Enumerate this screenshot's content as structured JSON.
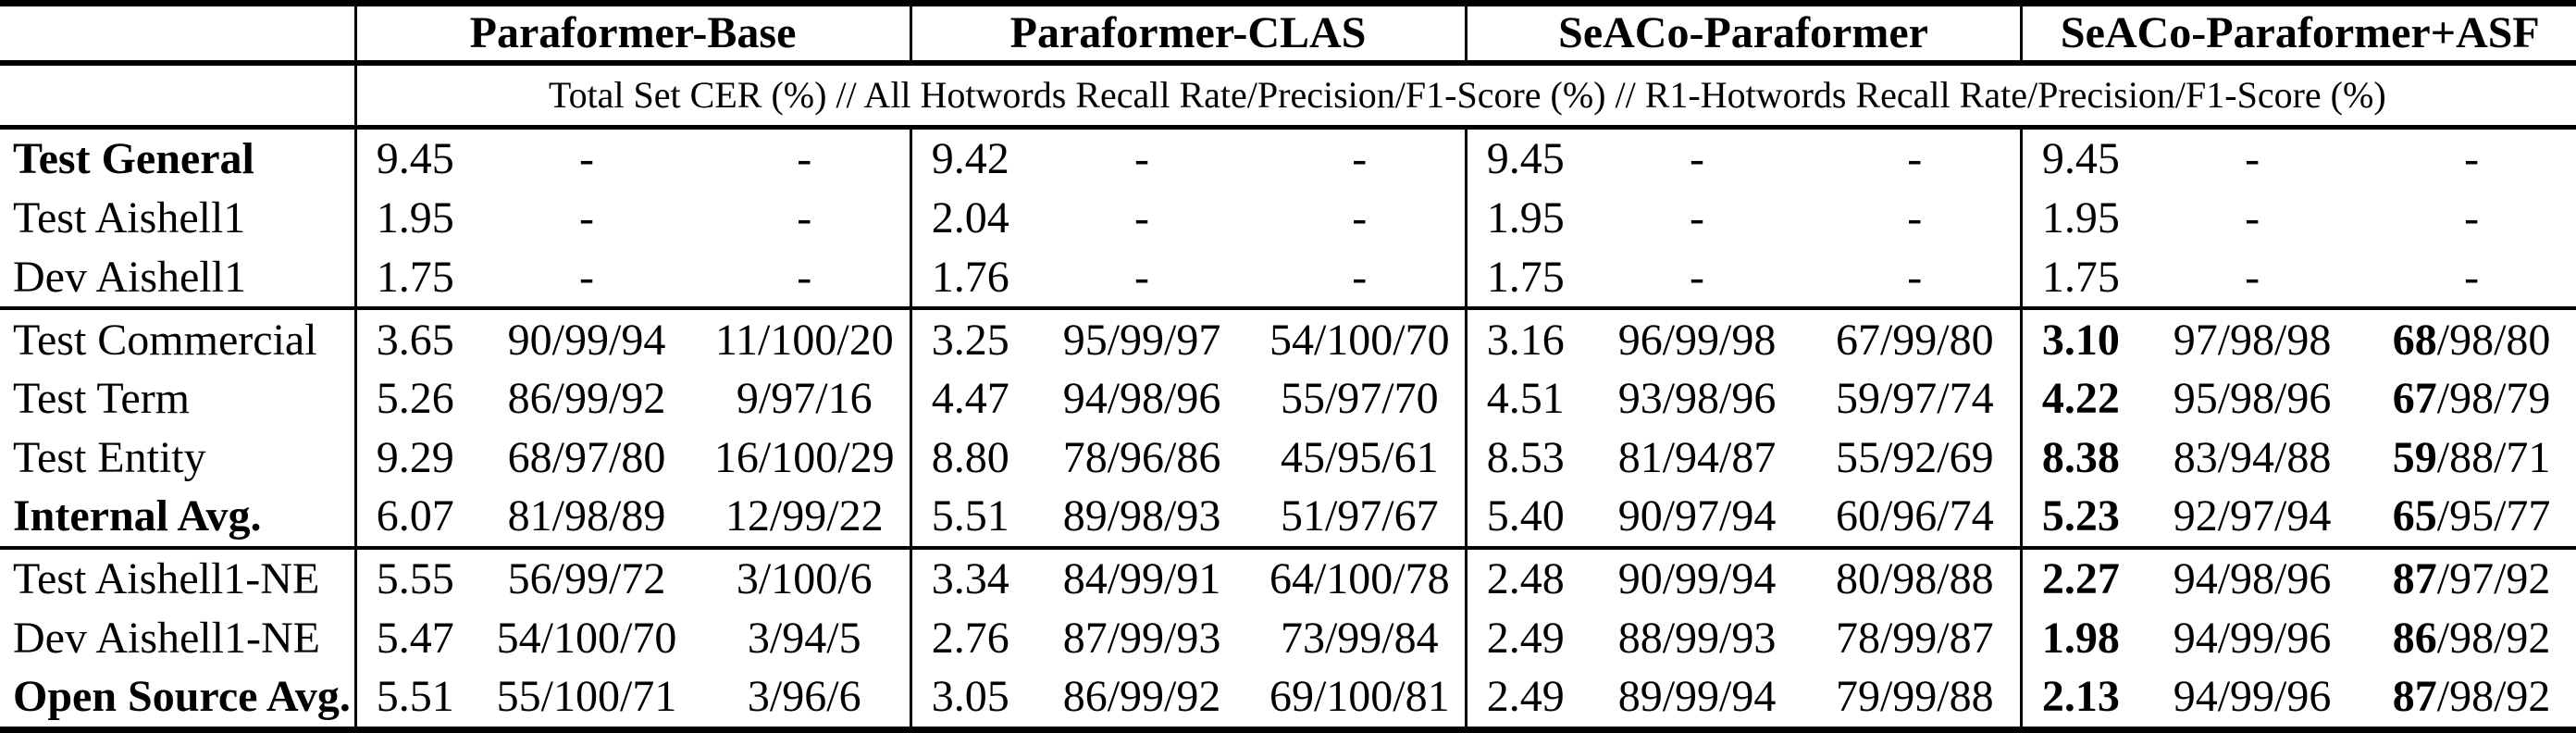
{
  "colors": {
    "text": "#000000",
    "background": "#ffffff",
    "border": "#000000"
  },
  "table": {
    "col_groups": [
      {
        "label": "Paraformer-Base"
      },
      {
        "label": "Paraformer-CLAS"
      },
      {
        "label": "SeACo-Paraformer"
      },
      {
        "label": "SeACo-Paraformer+ASF"
      }
    ],
    "subtitle": "Total Set CER (%) // All Hotwords Recall Rate/Precision/F1-Score (%) // R1-Hotwords Recall Rate/Precision/F1-Score (%)",
    "sub_columns": [
      "Total Set CER",
      "All Hotwords R/P/F1",
      "R1-Hotwords R/P/F1"
    ],
    "rows": [
      {
        "label": "**Test General**",
        "cells": [
          [
            "9.45",
            "-",
            "-"
          ],
          [
            "9.42",
            "-",
            "-"
          ],
          [
            "9.45",
            "-",
            "-"
          ],
          [
            "9.45",
            "-",
            "-"
          ]
        ]
      },
      {
        "label": "Test Aishell1",
        "cells": [
          [
            "1.95",
            "-",
            "-"
          ],
          [
            "2.04",
            "-",
            "-"
          ],
          [
            "1.95",
            "-",
            "-"
          ],
          [
            "1.95",
            "-",
            "-"
          ]
        ]
      },
      {
        "label": "Dev Aishell1",
        "rule_after": true,
        "cells": [
          [
            "1.75",
            "-",
            "-"
          ],
          [
            "1.76",
            "-",
            "-"
          ],
          [
            "1.75",
            "-",
            "-"
          ],
          [
            "1.75",
            "-",
            "-"
          ]
        ]
      },
      {
        "label": "Test Commercial",
        "cells": [
          [
            "3.65",
            "90/99/94",
            "11/100/20"
          ],
          [
            "3.25",
            "95/99/97",
            "54/100/70"
          ],
          [
            "3.16",
            "96/99/98",
            "67/99/80"
          ],
          [
            "**3.10**",
            "97/98/98",
            "**68**/98/80"
          ]
        ]
      },
      {
        "label": "Test Term",
        "cells": [
          [
            "5.26",
            "86/99/92",
            "9/97/16"
          ],
          [
            "4.47",
            "94/98/96",
            "55/97/70"
          ],
          [
            "4.51",
            "93/98/96",
            "59/97/74"
          ],
          [
            "**4.22**",
            "95/98/96",
            "**67**/98/79"
          ]
        ]
      },
      {
        "label": "Test Entity",
        "cells": [
          [
            "9.29",
            "68/97/80",
            "16/100/29"
          ],
          [
            "8.80",
            "78/96/86",
            "45/95/61"
          ],
          [
            "8.53",
            "81/94/87",
            "55/92/69"
          ],
          [
            "**8.38**",
            "83/94/88",
            "**59**/88/71"
          ]
        ]
      },
      {
        "label": "**Internal Avg.**",
        "rule_after": true,
        "cells": [
          [
            "6.07",
            "81/98/89",
            "12/99/22"
          ],
          [
            "5.51",
            "89/98/93",
            "51/97/67"
          ],
          [
            "5.40",
            "90/97/94",
            "60/96/74"
          ],
          [
            "**5.23**",
            "92/97/94",
            "**65**/95/77"
          ]
        ]
      },
      {
        "label": "Test Aishell1-NE",
        "cells": [
          [
            "5.55",
            "56/99/72",
            "3/100/6"
          ],
          [
            "3.34",
            "84/99/91",
            "64/100/78"
          ],
          [
            "2.48",
            "90/99/94",
            "80/98/88"
          ],
          [
            "**2.27**",
            "94/98/96",
            "**87**/97/92"
          ]
        ]
      },
      {
        "label": "Dev Aishell1-NE",
        "cells": [
          [
            "5.47",
            "54/100/70",
            "3/94/5"
          ],
          [
            "2.76",
            "87/99/93",
            "73/99/84"
          ],
          [
            "2.49",
            "88/99/93",
            "78/99/87"
          ],
          [
            "**1.98**",
            "94/99/96",
            "**86**/98/92"
          ]
        ]
      },
      {
        "label": "**Open Source Avg.**",
        "cells": [
          [
            "5.51",
            "55/100/71",
            "3/96/6"
          ],
          [
            "3.05",
            "86/99/92",
            "69/100/81"
          ],
          [
            "2.49",
            "89/99/94",
            "79/99/88"
          ],
          [
            "**2.13**",
            "94/99/96",
            "**87**/98/92"
          ]
        ]
      }
    ]
  }
}
